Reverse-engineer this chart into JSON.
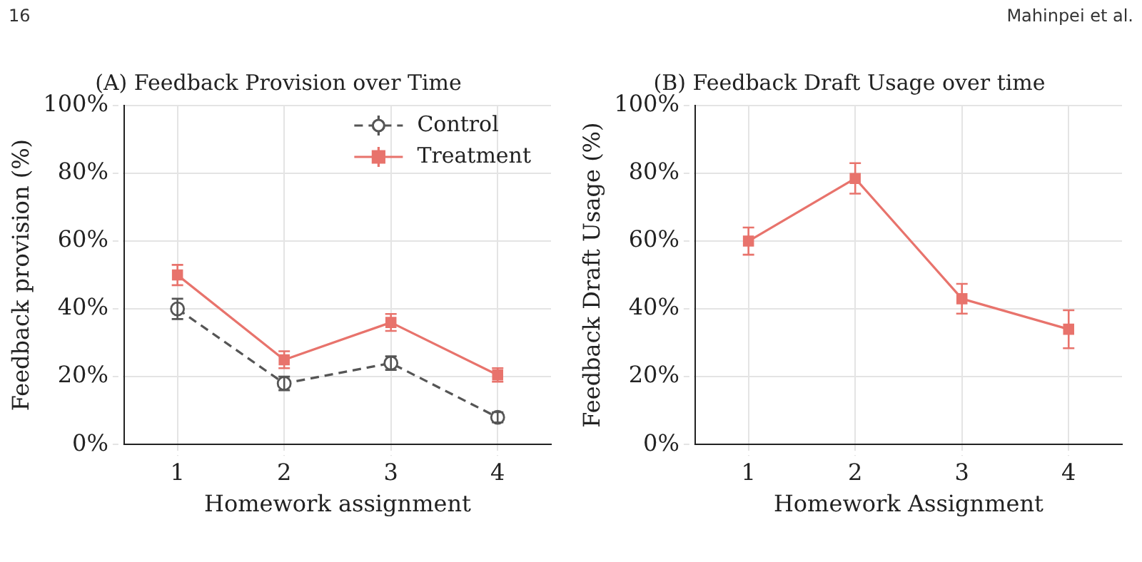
{
  "chart_data": [
    {
      "type": "line",
      "title": "(A) Feedback Provision over Time",
      "xlabel": "Homework assignment",
      "ylabel": "Feedback provision (%)",
      "annotations": [
        "16"
      ],
      "categories": [
        "1",
        "2",
        "3",
        "4"
      ],
      "series": [
        {
          "name": "Control",
          "color": "#555555",
          "marker": "circle",
          "line_style": "dashed",
          "values": [
            40,
            18,
            24,
            8
          ],
          "errors": [
            3,
            2,
            2,
            1.5
          ]
        },
        {
          "name": "Treatment",
          "color": "#e8736c",
          "marker": "square",
          "line_style": "solid",
          "values": [
            50,
            25,
            36,
            20.5
          ],
          "errors": [
            3,
            2.5,
            2.5,
            2
          ]
        }
      ],
      "ylim": [
        0,
        100
      ],
      "yticks": [
        {
          "value": 0,
          "label": "0%"
        },
        {
          "value": 20,
          "label": "20%"
        },
        {
          "value": 40,
          "label": "40%"
        },
        {
          "value": 60,
          "label": "60%"
        },
        {
          "value": 80,
          "label": "80%"
        },
        {
          "value": 100,
          "label": "100%"
        }
      ],
      "grid": true,
      "legend": "top right"
    },
    {
      "type": "line",
      "title": "(B) Feedback Draft Usage over time",
      "xlabel": "Homework Assignment",
      "ylabel": "Feedback Draft Usage (%)",
      "annotations": [
        "Mahinpei et al."
      ],
      "categories": [
        "1",
        "2",
        "3",
        "4"
      ],
      "series": [
        {
          "color": "#e8736c",
          "marker": "square",
          "line_style": "solid",
          "values": [
            60,
            78.5,
            43,
            34
          ],
          "errors": [
            4,
            4.5,
            4.4,
            5.6
          ]
        }
      ],
      "ylim": [
        0,
        100
      ],
      "yticks": [
        {
          "value": 0,
          "label": "0%"
        },
        {
          "value": 20,
          "label": "20%"
        },
        {
          "value": 40,
          "label": "40%"
        },
        {
          "value": 60,
          "label": "60%"
        },
        {
          "value": 80,
          "label": "80%"
        },
        {
          "value": 100,
          "label": "100%"
        }
      ],
      "grid": true
    }
  ]
}
